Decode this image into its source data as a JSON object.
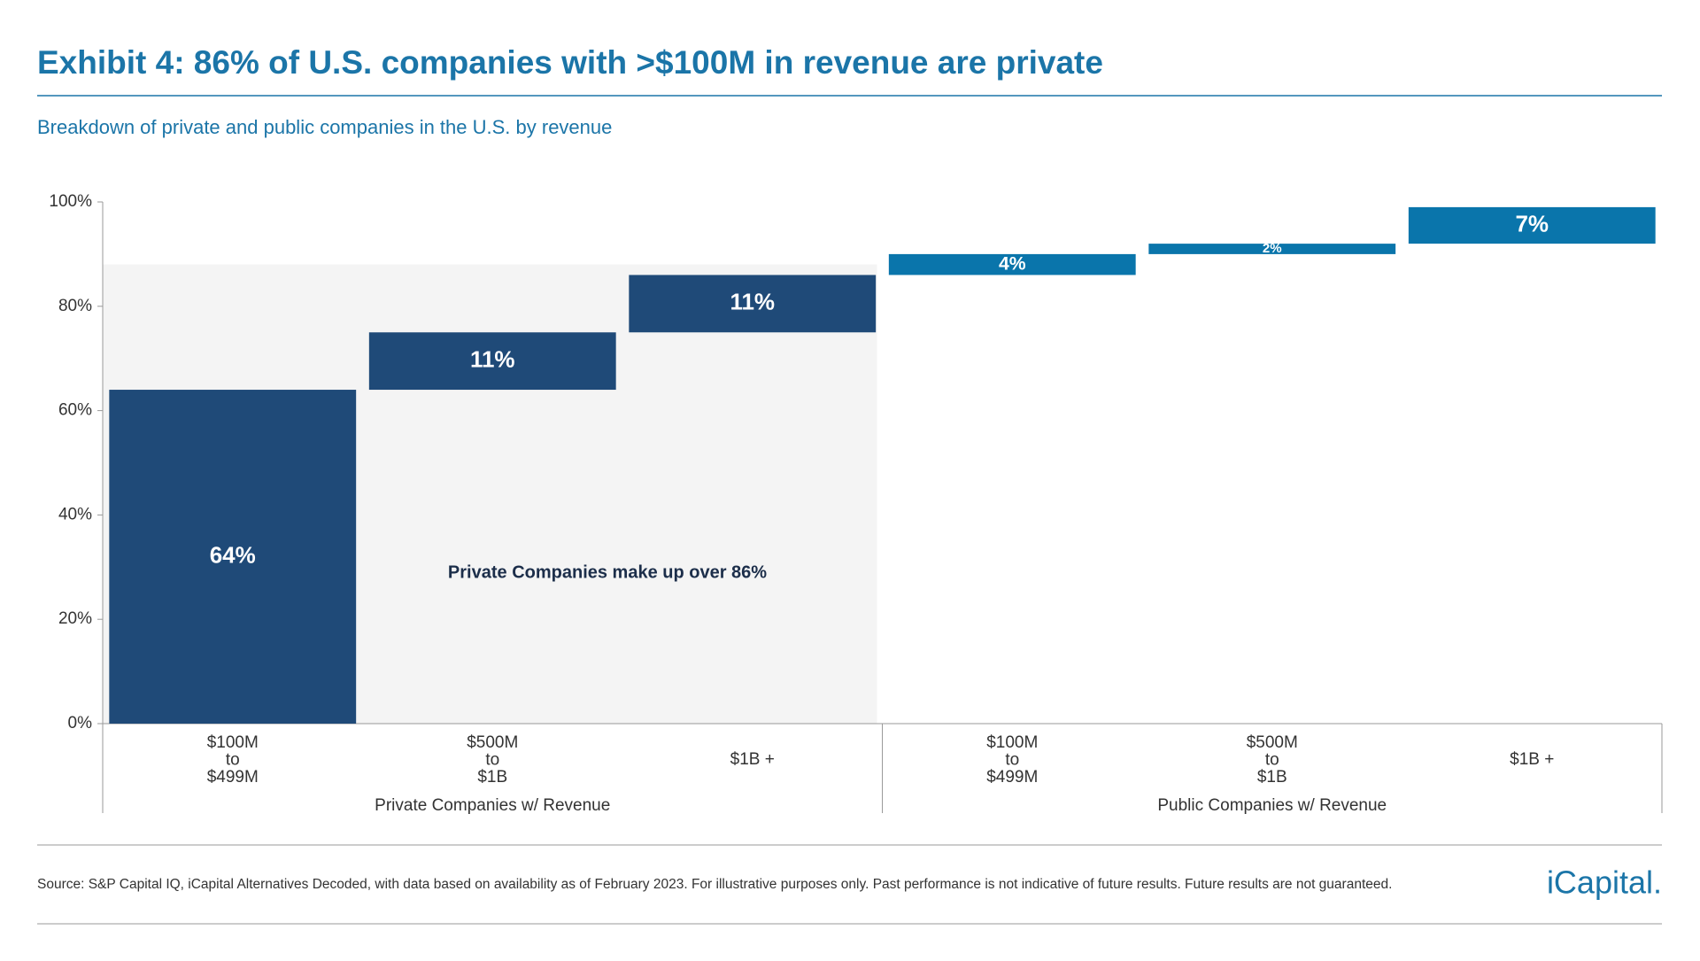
{
  "header": {
    "title": "Exhibit 4: 86% of U.S. companies with >$100M in revenue are private",
    "subtitle": "Breakdown of private and public companies in the U.S. by revenue"
  },
  "chart_data": {
    "type": "waterfall",
    "series": [
      {
        "name": "Private Companies w/ Revenue",
        "color": "#1f4a78",
        "categories": [
          [
            "$100M",
            "to",
            "$499M"
          ],
          [
            "$500M",
            "to",
            "$1B"
          ],
          [
            "$1B +"
          ]
        ],
        "values": [
          64,
          11,
          11
        ],
        "value_labels": [
          "64%",
          "11%",
          "11%"
        ]
      },
      {
        "name": "Public Companies w/ Revenue",
        "color": "#0a75ab",
        "categories": [
          [
            "$100M",
            "to",
            "$499M"
          ],
          [
            "$500M",
            "to",
            "$1B"
          ],
          [
            "$1B +"
          ]
        ],
        "values": [
          4,
          2,
          7
        ],
        "value_labels": [
          "4%",
          "2%",
          "7%"
        ]
      }
    ],
    "annotation": "Private Companies make up over 86%",
    "ylim": [
      0,
      100
    ],
    "yticks": [
      {
        "value": 0,
        "label": "0%"
      },
      {
        "value": 20,
        "label": "20%"
      },
      {
        "value": 40,
        "label": "40%"
      },
      {
        "value": 60,
        "label": "60%"
      },
      {
        "value": 80,
        "label": "80%"
      },
      {
        "value": 100,
        "label": "100%"
      }
    ],
    "grid": false
  },
  "footer": {
    "source": "Source: S&P Capital IQ, iCapital Alternatives Decoded, with data based on availability as of February 2023. For illustrative purposes only. Past performance is not indicative of future results. Future results are not guaranteed.",
    "logo": "iCapital."
  }
}
